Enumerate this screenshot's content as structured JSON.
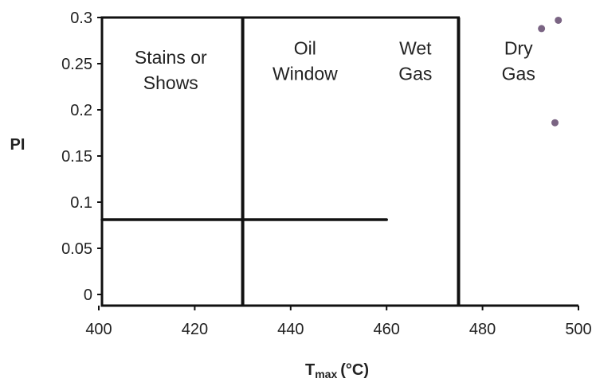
{
  "chart_data": {
    "type": "scatter",
    "title": "",
    "xlabel": "T",
    "xlabel_sub": "max",
    "xlabel_unit": "(°C)",
    "ylabel": "PI",
    "xlim": [
      400,
      500
    ],
    "ylim": [
      0,
      0.3
    ],
    "x_ticks": [
      400,
      420,
      440,
      460,
      480,
      500
    ],
    "x_tick_labels": [
      "400",
      "420",
      "440",
      "460",
      "480",
      "500"
    ],
    "y_ticks": [
      0,
      0.05,
      0.1,
      0.15,
      0.2,
      0.25,
      0.3
    ],
    "y_tick_labels": [
      "0",
      "0.05",
      "0.1",
      "0.15",
      "0.2",
      "0.25",
      "0.3"
    ],
    "grid": false,
    "legend": "none",
    "points": [
      {
        "x": 492.3,
        "y": 0.288
      },
      {
        "x": 495.8,
        "y": 0.297
      },
      {
        "x": 495.1,
        "y": 0.186
      }
    ],
    "point_color": "#7a6483",
    "line_color": "#111111",
    "boundaries": [
      {
        "type": "vertical",
        "x": 430,
        "y_from": -0.012,
        "y_to": 0.3
      },
      {
        "type": "vertical",
        "x": 475,
        "y_from": -0.012,
        "y_to": 0.3
      },
      {
        "type": "horizontal",
        "y": 0.081,
        "x_from": 400,
        "x_to": 460
      }
    ],
    "regions": [
      {
        "lines": [
          "Stains or",
          "Shows"
        ],
        "x": 415,
        "y": 0.25
      },
      {
        "lines": [
          "Oil",
          "Window"
        ],
        "x": 443,
        "y": 0.26
      },
      {
        "lines": [
          "Wet",
          "Gas"
        ],
        "x": 466,
        "y": 0.26
      },
      {
        "lines": [
          "Dry",
          "Gas"
        ],
        "x": 487.5,
        "y": 0.26
      }
    ]
  }
}
